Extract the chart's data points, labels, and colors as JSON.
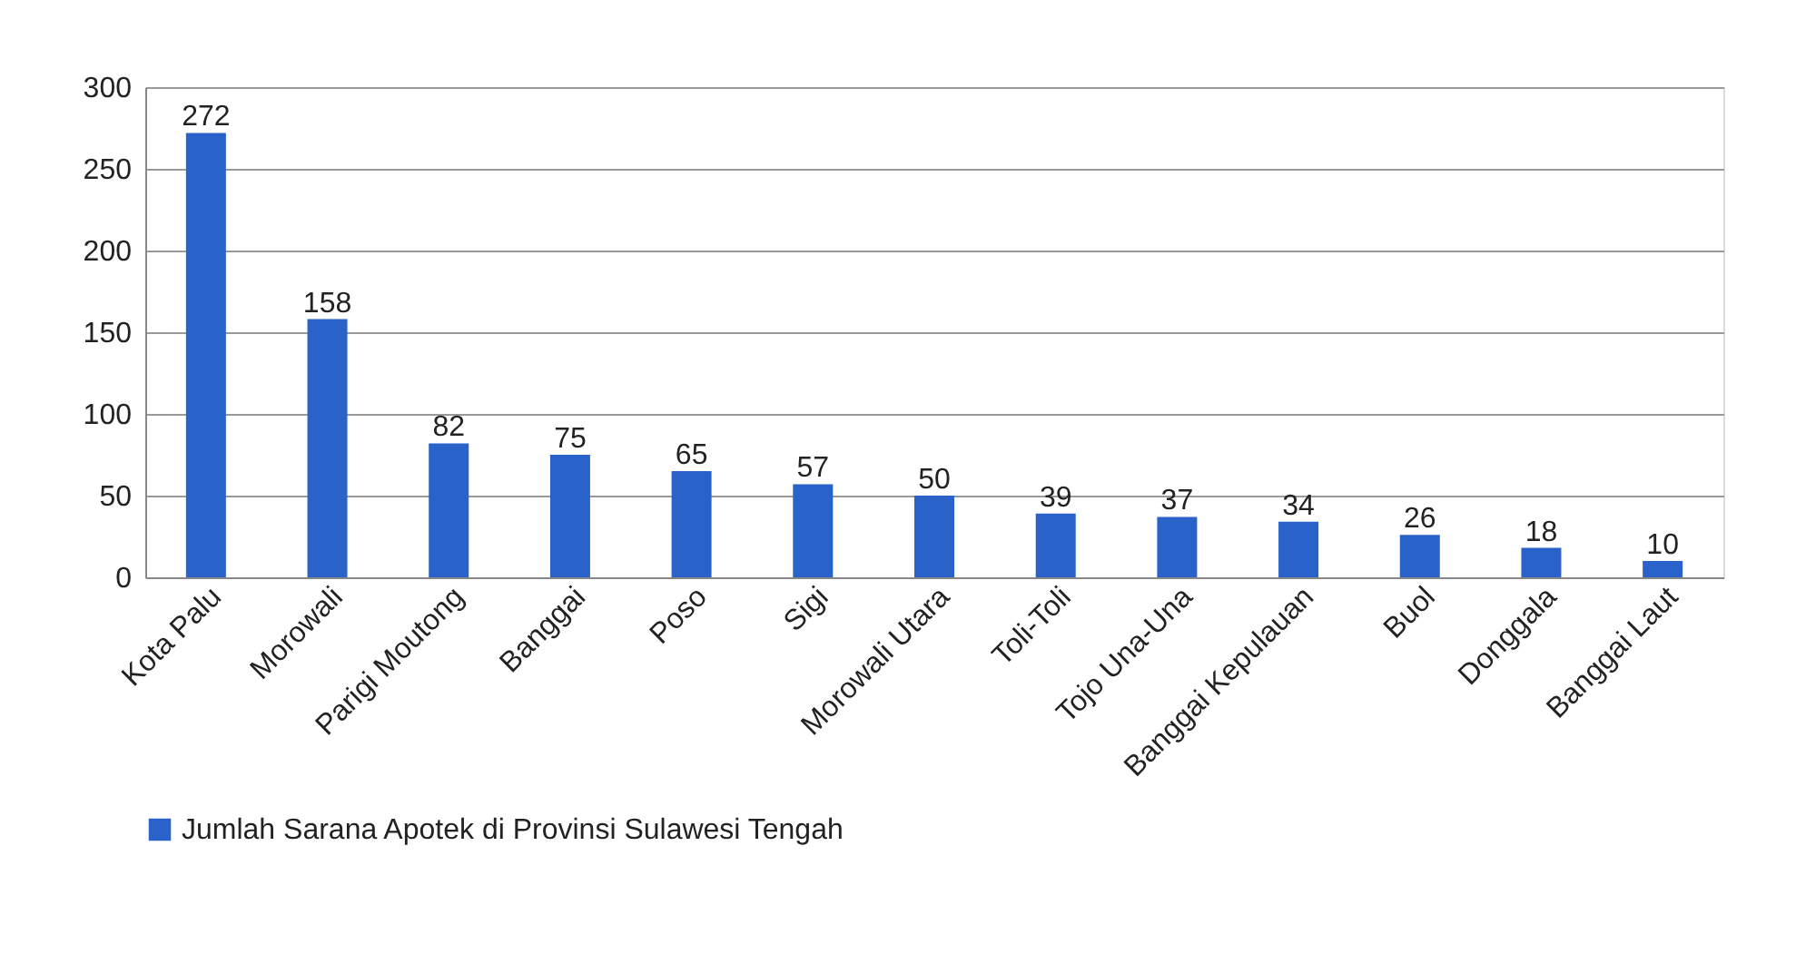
{
  "chart_data": {
    "type": "bar",
    "categories": [
      "Kota Palu",
      "Morowali",
      "Parigi Moutong",
      "Banggai",
      "Poso",
      "Sigi",
      "Morowali Utara",
      "Toli-Toli",
      "Tojo Una-Una",
      "Banggai Kepulauan",
      "Buol",
      "Donggala",
      "Banggai Laut"
    ],
    "series": [
      {
        "name": "Jumlah Sarana Apotek di Provinsi Sulawesi Tengah",
        "color": "#2962c8",
        "values": [
          272,
          158,
          82,
          75,
          65,
          57,
          50,
          39,
          37,
          34,
          26,
          18,
          10
        ]
      }
    ],
    "ylim": [
      0,
      300
    ],
    "yticks": [
      0,
      50,
      100,
      150,
      200,
      250,
      300
    ],
    "grid": "y",
    "legend": "bottom",
    "data_labels": true
  }
}
